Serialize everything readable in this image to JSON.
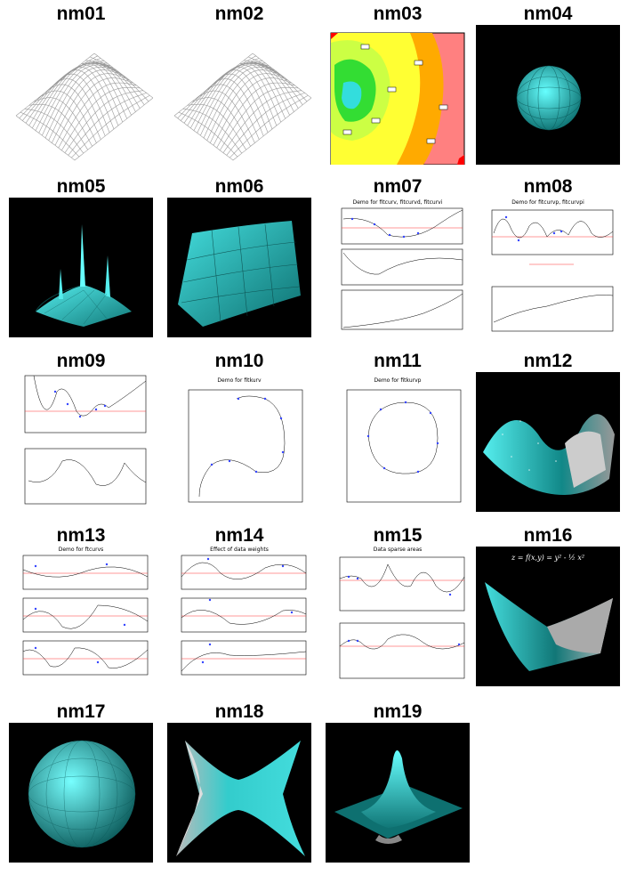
{
  "thumbnails": [
    {
      "label": "nm01",
      "icon": "wireframe-surface-icon",
      "background": "#ffffff"
    },
    {
      "label": "nm02",
      "icon": "wireframe-surface-icon",
      "background": "#ffffff"
    },
    {
      "label": "nm03",
      "icon": "contour-map-icon",
      "background": "#ffffff"
    },
    {
      "label": "nm04",
      "icon": "cyan-sphere-icon",
      "background": "#000000"
    },
    {
      "label": "nm05",
      "icon": "cyan-spiked-surface-icon",
      "background": "#000000"
    },
    {
      "label": "nm06",
      "icon": "cyan-sheet-surface-icon",
      "background": "#000000"
    },
    {
      "label": "nm07",
      "icon": "spline-plots-icon",
      "background": "#ffffff",
      "plot_title": "Demo for fitcurv, fitcurvd, fitcurvi"
    },
    {
      "label": "nm08",
      "icon": "spline-plots-icon",
      "background": "#ffffff",
      "plot_title": "Demo for fitcurvp, fitcurvpi"
    },
    {
      "label": "nm09",
      "icon": "spline-plots-icon",
      "background": "#ffffff"
    },
    {
      "label": "nm10",
      "icon": "parametric-curve-icon",
      "background": "#ffffff",
      "plot_title": "Demo for fitkurv"
    },
    {
      "label": "nm11",
      "icon": "closed-curve-icon",
      "background": "#ffffff",
      "plot_title": "Demo for fitkurvp"
    },
    {
      "label": "nm12",
      "icon": "cyan-wave-surface-icon",
      "background": "#000000"
    },
    {
      "label": "nm13",
      "icon": "spline-plots-icon",
      "background": "#ffffff",
      "plot_title": "Demo for ftcurvs"
    },
    {
      "label": "nm14",
      "icon": "spline-plots-icon",
      "background": "#ffffff",
      "plot_title": "Effect of data weights"
    },
    {
      "label": "nm15",
      "icon": "spline-plots-icon",
      "background": "#ffffff",
      "plot_title": "Data sparse areas"
    },
    {
      "label": "nm16",
      "icon": "cyan-saddle-surface-icon",
      "background": "#000000",
      "formula": "z = f(x,y) = y² - ½ x²"
    },
    {
      "label": "nm17",
      "icon": "cyan-sphere-icon",
      "background": "#000000"
    },
    {
      "label": "nm18",
      "icon": "cyan-saddle-surface-icon",
      "background": "#000000"
    },
    {
      "label": "nm19",
      "icon": "cyan-peak-surface-icon",
      "background": "#000000"
    }
  ],
  "colors": {
    "cyan": "#33dddd",
    "cyan_dark": "#118888",
    "grid_gray": "#9a9a9a",
    "red_line": "#ff3333",
    "blue_points": "#3344ff"
  }
}
